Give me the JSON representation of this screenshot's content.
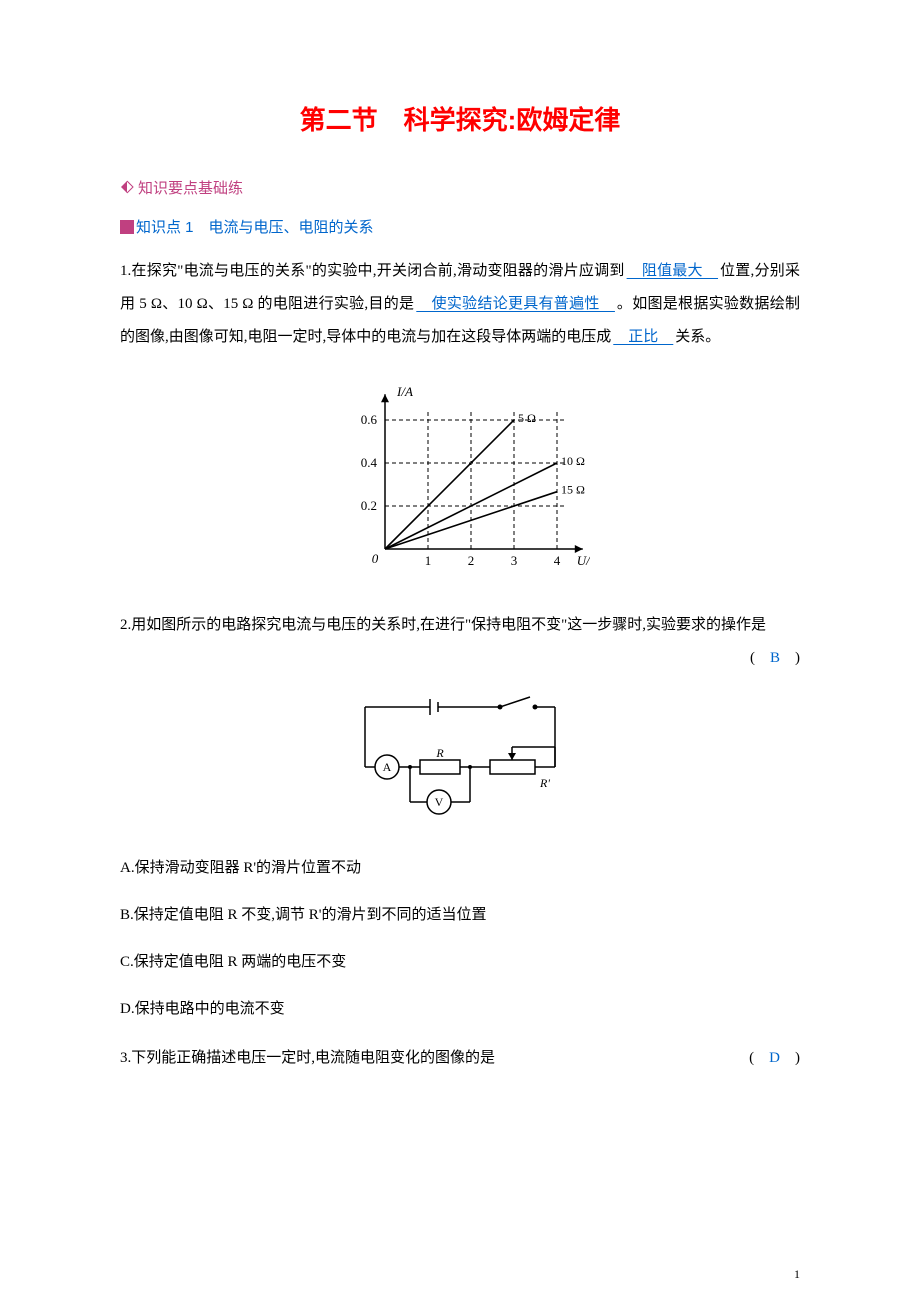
{
  "title": "第二节　科学探究:欧姆定律",
  "section_label": "知识要点基础练",
  "section_color": "#c04080",
  "kp": {
    "label": "知识点 1　电流与电压、电阻的关系",
    "color": "#0066cc"
  },
  "q1": {
    "pre1": "1.在探究\"电流与电压的关系\"的实验中,开关闭合前,滑动变阻器的滑片应调到",
    "blank1": "　阻值最大　",
    "mid1": "位置,分别采用 5 Ω、10 Ω、15 Ω 的电阻进行实验,目的是",
    "blank2": "　使实验结论更具有普遍性　",
    "mid2": "。如图是根据实验数据绘制的图像,由图像可知,电阻一定时,导体中的电流与加在这段导体两端的电压成",
    "blank3": "　正比　",
    "post": "关系。"
  },
  "chart": {
    "ylabel": "I/A",
    "xlabel": "U/V",
    "yticks": [
      "0.2",
      "0.4",
      "0.6"
    ],
    "xticks": [
      "1",
      "2",
      "3",
      "4"
    ],
    "series": [
      {
        "label": "5 Ω",
        "x2": 3.0,
        "y2": 3.0
      },
      {
        "label": "10 Ω",
        "x2": 4.0,
        "y2": 2.0
      },
      {
        "label": "15 Ω",
        "x2": 4.0,
        "y2": 1.333
      }
    ],
    "stroke": "#000000",
    "dash": "4,3",
    "font_size": 13
  },
  "q2": {
    "text": "2.用如图所示的电路探究电流与电压的关系时,在进行\"保持电阻不变\"这一步骤时,实验要求的操作是",
    "answer": "B",
    "options": {
      "A": "A.保持滑动变阻器 R'的滑片位置不动",
      "B": "B.保持定值电阻 R 不变,调节 R'的滑片到不同的适当位置",
      "C": "C.保持定值电阻 R 两端的电压不变",
      "D": "D.保持电路中的电流不变"
    }
  },
  "circuit": {
    "labels": {
      "A": "A",
      "V": "V",
      "R": "R",
      "Rp": "R'"
    },
    "stroke": "#000000"
  },
  "q3": {
    "text": "3.下列能正确描述电压一定时,电流随电阻变化的图像的是",
    "answer": "D"
  },
  "page_number": "1"
}
